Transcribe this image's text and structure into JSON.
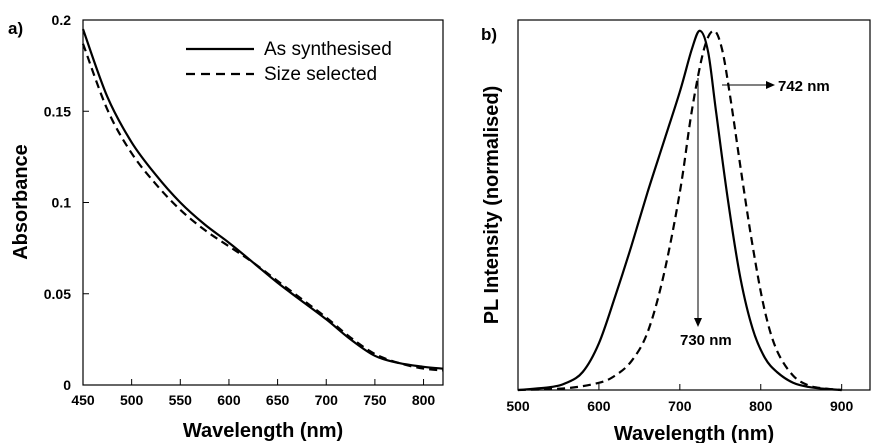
{
  "chart_data": [
    {
      "panel": "a)",
      "type": "line",
      "xlabel": "Wavelength (nm)",
      "ylabel": "Absorbance",
      "xlim": [
        450,
        820
      ],
      "ylim": [
        0,
        0.2
      ],
      "xticks": [
        "450",
        "500",
        "550",
        "600",
        "650",
        "700",
        "750",
        "800"
      ],
      "yticks": [
        "0",
        "0.05",
        "0.1",
        "0.15",
        "0.2"
      ],
      "legend_position": "top-right",
      "series": [
        {
          "name": "As synthesised",
          "style": "solid",
          "x": [
            450,
            475,
            500,
            525,
            550,
            575,
            600,
            625,
            650,
            675,
            700,
            725,
            750,
            775,
            800,
            820
          ],
          "y": [
            0.195,
            0.158,
            0.133,
            0.115,
            0.1,
            0.088,
            0.078,
            0.067,
            0.056,
            0.046,
            0.036,
            0.025,
            0.016,
            0.012,
            0.01,
            0.009
          ]
        },
        {
          "name": "Size selected",
          "style": "dashed",
          "x": [
            450,
            475,
            500,
            525,
            550,
            575,
            600,
            625,
            650,
            675,
            700,
            725,
            750,
            775,
            800,
            820
          ],
          "y": [
            0.187,
            0.151,
            0.127,
            0.11,
            0.096,
            0.085,
            0.076,
            0.067,
            0.057,
            0.047,
            0.037,
            0.026,
            0.017,
            0.012,
            0.009,
            0.008
          ]
        }
      ]
    },
    {
      "panel": "b)",
      "type": "line",
      "xlabel": "Wavelength (nm)",
      "ylabel": "PL Intensity (normalised)",
      "xlim": [
        500,
        935
      ],
      "ylim": [
        0,
        1.03
      ],
      "xticks": [
        "500",
        "600",
        "700",
        "800",
        "900"
      ],
      "yticks": [],
      "annotations": [
        "730 nm",
        "742 nm"
      ],
      "series": [
        {
          "name": "",
          "style": "solid",
          "x": [
            500,
            540,
            560,
            580,
            600,
            620,
            640,
            660,
            680,
            700,
            715,
            725,
            735,
            745,
            760,
            775,
            790,
            805,
            820,
            840,
            860,
            880,
            900
          ],
          "y": [
            0.0,
            0.008,
            0.02,
            0.05,
            0.13,
            0.26,
            0.4,
            0.55,
            0.69,
            0.83,
            0.95,
            1.0,
            0.94,
            0.77,
            0.52,
            0.31,
            0.17,
            0.09,
            0.05,
            0.02,
            0.008,
            0.003,
            0.0
          ]
        },
        {
          "name": "",
          "style": "dashed",
          "x": [
            500,
            560,
            600,
            620,
            640,
            660,
            680,
            700,
            715,
            730,
            742,
            752,
            762,
            775,
            790,
            805,
            820,
            840,
            860,
            880,
            900
          ],
          "y": [
            0.0,
            0.005,
            0.02,
            0.04,
            0.08,
            0.16,
            0.32,
            0.55,
            0.78,
            0.95,
            1.0,
            0.95,
            0.82,
            0.62,
            0.4,
            0.22,
            0.11,
            0.04,
            0.012,
            0.004,
            0.0
          ]
        }
      ]
    }
  ]
}
